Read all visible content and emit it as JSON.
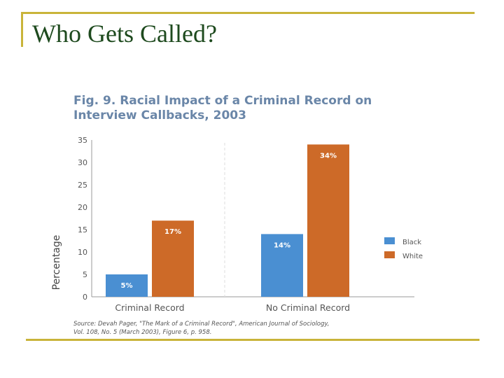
{
  "slide": {
    "title": "Who Gets Called?"
  },
  "colors": {
    "rule": "#c9b43a",
    "title": "#1e4a1e",
    "fig_title": "#6a86a8",
    "black_series": "#4a8fd2",
    "white_series": "#cd6a28",
    "axis_text": "#555555"
  },
  "chart_data": {
    "type": "bar",
    "title": "Fig. 9. Racial Impact of a Criminal Record on Interview Callbacks, 2003",
    "title_lines": [
      "Fig. 9. Racial Impact of a Criminal Record on",
      "Interview Callbacks, 2003"
    ],
    "xlabel": "",
    "ylabel": "Percentage",
    "ylim": [
      0,
      35
    ],
    "yticks": [
      0,
      5,
      10,
      15,
      20,
      25,
      30,
      35
    ],
    "categories": [
      "Criminal Record",
      "No Criminal Record"
    ],
    "series": [
      {
        "name": "Black",
        "values": [
          5,
          14
        ],
        "labels": [
          "5%",
          "14%"
        ],
        "color": "#4a8fd2"
      },
      {
        "name": "White",
        "values": [
          17,
          34
        ],
        "labels": [
          "17%",
          "34%"
        ],
        "color": "#cd6a28"
      }
    ],
    "legend_position": "right",
    "grid": false,
    "source_lines": [
      "Source: Devah Pager, \"The Mark of a Criminal Record\", American Journal of Sociology,",
      "Vol. 108, No. 5 (March 2003), Figure 6, p. 958."
    ]
  }
}
